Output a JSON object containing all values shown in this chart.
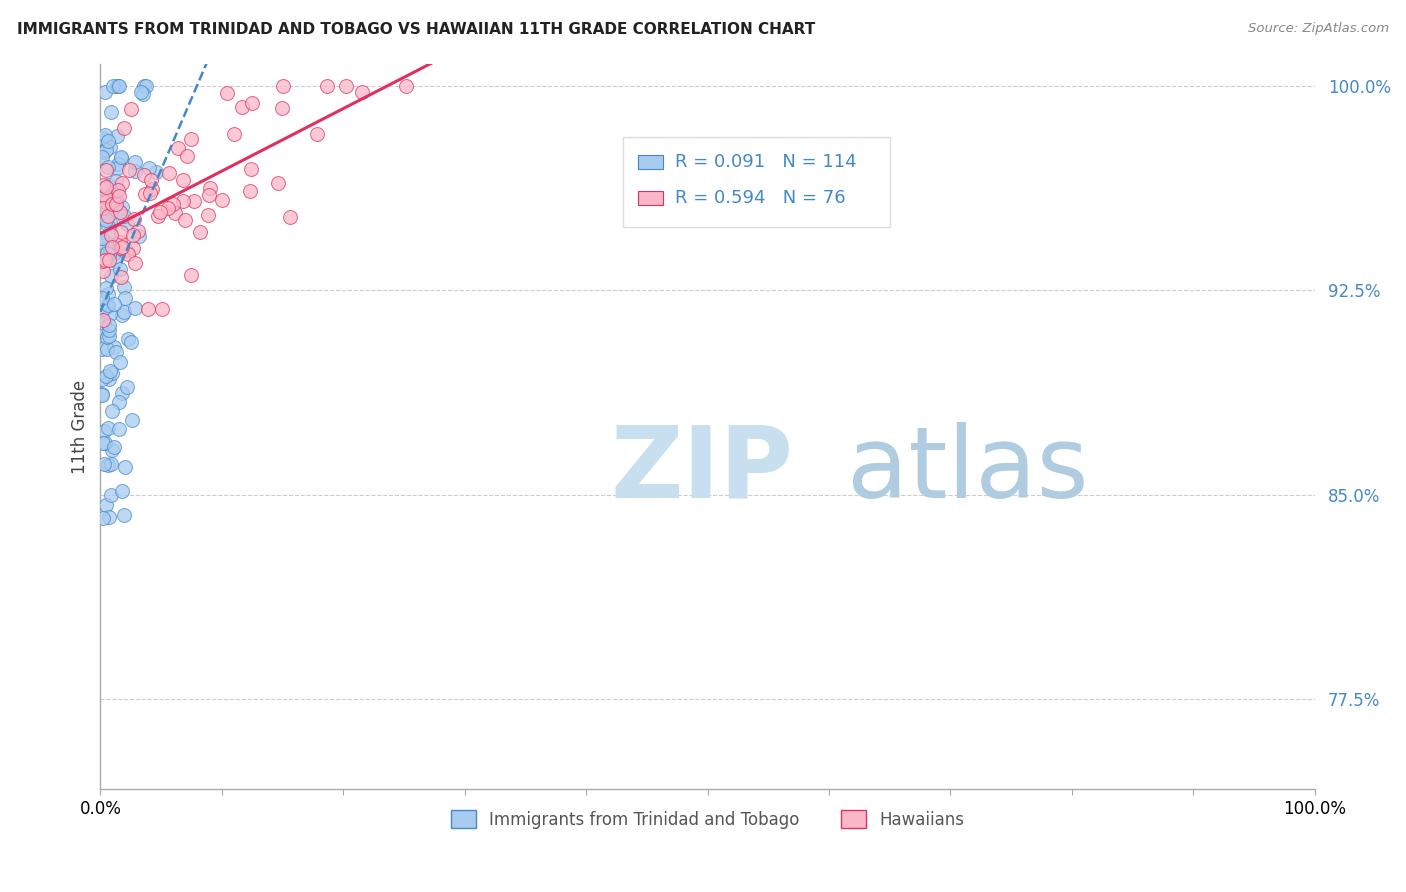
{
  "title": "IMMIGRANTS FROM TRINIDAD AND TOBAGO VS HAWAIIAN 11TH GRADE CORRELATION CHART",
  "source_text": "Source: ZipAtlas.com",
  "ylabel": "11th Grade",
  "xmin": 0.0,
  "xmax": 1.0,
  "ymin": 0.742,
  "ymax": 1.008,
  "blue_R": 0.091,
  "blue_N": 114,
  "pink_R": 0.594,
  "pink_N": 76,
  "blue_color": "#A8CCF0",
  "pink_color": "#F9B8C8",
  "blue_line_color": "#4488CC",
  "pink_line_color": "#E03060",
  "legend_label_blue": "Immigrants from Trinidad and Tobago",
  "legend_label_pink": "Hawaiians",
  "watermark_zip_color": "#C8DFF0",
  "watermark_atlas_color": "#B0CCE0",
  "ytick_vals": [
    0.775,
    0.85,
    0.925,
    1.0
  ],
  "ytick_labels": [
    "77.5%",
    "85.0%",
    "92.5%",
    "100.0%"
  ]
}
